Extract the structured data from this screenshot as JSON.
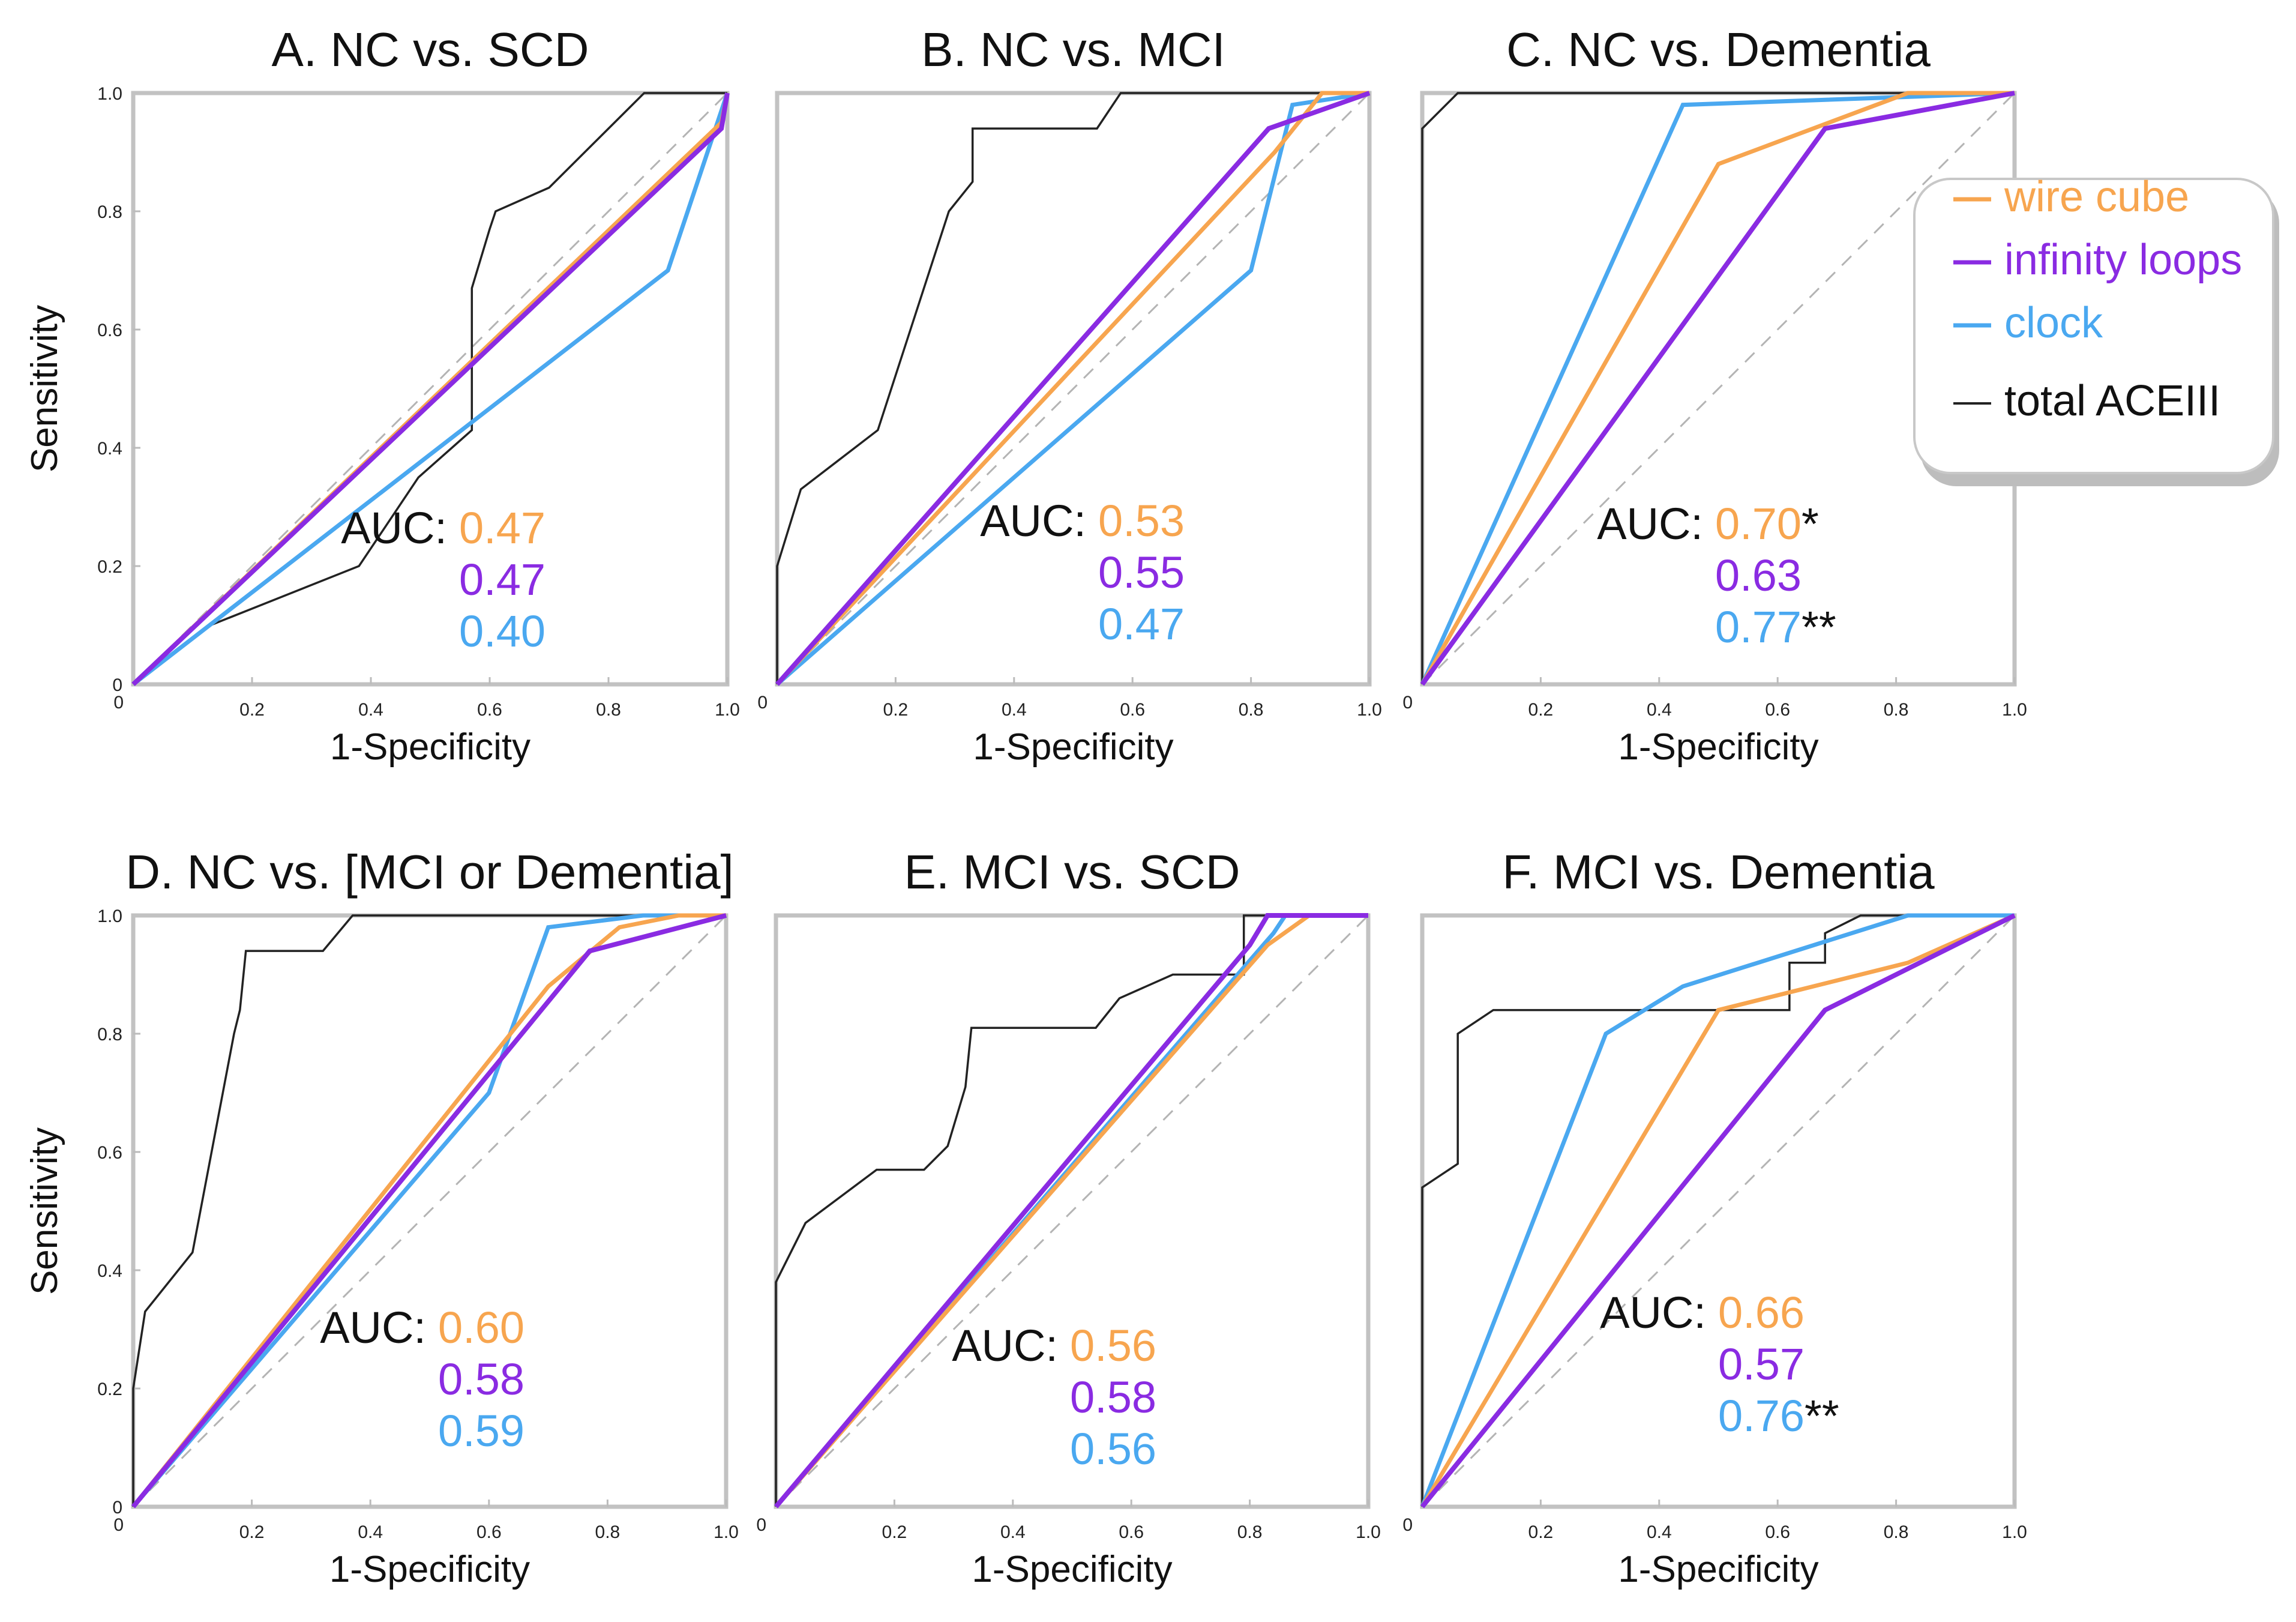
{
  "figure": {
    "xlabel": "1-Specificity",
    "ylabel": "Sensitivity",
    "auc_label": "AUC:",
    "ticks": [
      "0.2",
      "0.4",
      "0.6",
      "0.8",
      "1.0"
    ],
    "y_ticks": [
      "0",
      "0.2",
      "0.4",
      "0.6",
      "0.8",
      "1.0"
    ],
    "x_zero": "0"
  },
  "legend": {
    "placement": "right of panel C",
    "items": [
      {
        "key": "wire_cube",
        "label": "wire cube",
        "color": "#f7a54f",
        "icon": "line-swatch-icon"
      },
      {
        "key": "infinity_loops",
        "label": "infinity loops",
        "color": "#8a2be2",
        "icon": "line-swatch-icon"
      },
      {
        "key": "clock",
        "label": "clock",
        "color": "#4aa8f0",
        "icon": "line-swatch-icon"
      },
      {
        "key": "total_aceiii",
        "label": "total ACEIII",
        "color": "#222222",
        "icon": "line-swatch-icon"
      }
    ]
  },
  "chart_data": [
    {
      "type": "line",
      "title": "A. NC vs. SCD",
      "xlabel": "1-Specificity",
      "ylabel": "Sensitivity",
      "xlim": [
        0,
        1
      ],
      "ylim": [
        0,
        1
      ],
      "reference_diagonal": true,
      "auc": [
        {
          "series": "wire cube",
          "value": "0.47",
          "mark": ""
        },
        {
          "series": "infinity loops",
          "value": "0.47",
          "mark": ""
        },
        {
          "series": "clock",
          "value": "0.40",
          "mark": ""
        }
      ],
      "series": [
        {
          "name": "wire cube",
          "points": [
            [
              0,
              0
            ],
            [
              0.99,
              0.95
            ],
            [
              1,
              1
            ]
          ]
        },
        {
          "name": "infinity loops",
          "points": [
            [
              0,
              0
            ],
            [
              0.99,
              0.94
            ],
            [
              1,
              1
            ]
          ]
        },
        {
          "name": "clock",
          "points": [
            [
              0,
              0
            ],
            [
              0.9,
              0.7
            ],
            [
              1,
              1
            ]
          ]
        },
        {
          "name": "total ACEIII",
          "points": [
            [
              0,
              0
            ],
            [
              0.13,
              0.1
            ],
            [
              0.38,
              0.2
            ],
            [
              0.48,
              0.35
            ],
            [
              0.57,
              0.43
            ],
            [
              0.57,
              0.67
            ],
            [
              0.6,
              0.77
            ],
            [
              0.61,
              0.8
            ],
            [
              0.7,
              0.84
            ],
            [
              0.86,
              1.0
            ],
            [
              1,
              1
            ]
          ]
        }
      ]
    },
    {
      "type": "line",
      "title": "B. NC vs. MCI",
      "xlabel": "1-Specificity",
      "ylabel": "",
      "xlim": [
        0,
        1
      ],
      "ylim": [
        0,
        1
      ],
      "reference_diagonal": true,
      "auc": [
        {
          "series": "wire cube",
          "value": "0.53",
          "mark": ""
        },
        {
          "series": "infinity loops",
          "value": "0.55",
          "mark": ""
        },
        {
          "series": "clock",
          "value": "0.47",
          "mark": ""
        }
      ],
      "series": [
        {
          "name": "wire cube",
          "points": [
            [
              0,
              0
            ],
            [
              0.84,
              0.9
            ],
            [
              0.92,
              1.0
            ],
            [
              1,
              1
            ]
          ]
        },
        {
          "name": "infinity loops",
          "points": [
            [
              0,
              0
            ],
            [
              0.83,
              0.94
            ],
            [
              1,
              1
            ]
          ]
        },
        {
          "name": "clock",
          "points": [
            [
              0,
              0
            ],
            [
              0.8,
              0.7
            ],
            [
              0.87,
              0.98
            ],
            [
              1,
              1
            ]
          ]
        },
        {
          "name": "total ACEIII",
          "points": [
            [
              0,
              0
            ],
            [
              0,
              0.2
            ],
            [
              0.04,
              0.33
            ],
            [
              0.17,
              0.43
            ],
            [
              0.29,
              0.8
            ],
            [
              0.33,
              0.85
            ],
            [
              0.33,
              0.94
            ],
            [
              0.54,
              0.94
            ],
            [
              0.58,
              1.0
            ],
            [
              1,
              1
            ]
          ]
        }
      ]
    },
    {
      "type": "line",
      "title": "C. NC vs. Dementia",
      "xlabel": "1-Specificity",
      "ylabel": "",
      "xlim": [
        0,
        1
      ],
      "ylim": [
        0,
        1
      ],
      "reference_diagonal": true,
      "auc": [
        {
          "series": "wire cube",
          "value": "0.70",
          "mark": "*"
        },
        {
          "series": "infinity loops",
          "value": "0.63",
          "mark": ""
        },
        {
          "series": "clock",
          "value": "0.77",
          "mark": "**"
        }
      ],
      "series": [
        {
          "name": "wire cube",
          "points": [
            [
              0,
              0
            ],
            [
              0.5,
              0.88
            ],
            [
              0.82,
              1.0
            ],
            [
              1,
              1
            ]
          ]
        },
        {
          "name": "infinity loops",
          "points": [
            [
              0,
              0
            ],
            [
              0.68,
              0.94
            ],
            [
              1,
              1
            ]
          ]
        },
        {
          "name": "clock",
          "points": [
            [
              0,
              0
            ],
            [
              0.44,
              0.98
            ],
            [
              1,
              1
            ]
          ]
        },
        {
          "name": "total ACEIII",
          "points": [
            [
              0,
              0
            ],
            [
              0,
              0.94
            ],
            [
              0.06,
              1.0
            ],
            [
              1,
              1
            ]
          ]
        }
      ]
    },
    {
      "type": "line",
      "title": "D. NC vs. [MCI or Dementia]",
      "xlabel": "1-Specificity",
      "ylabel": "Sensitivity",
      "xlim": [
        0,
        1
      ],
      "ylim": [
        0,
        1
      ],
      "reference_diagonal": true,
      "auc": [
        {
          "series": "wire cube",
          "value": "0.60",
          "mark": ""
        },
        {
          "series": "infinity loops",
          "value": "0.58",
          "mark": ""
        },
        {
          "series": "clock",
          "value": "0.59",
          "mark": ""
        }
      ],
      "series": [
        {
          "name": "wire cube",
          "points": [
            [
              0,
              0
            ],
            [
              0.7,
              0.88
            ],
            [
              0.82,
              0.98
            ],
            [
              0.92,
              1.0
            ],
            [
              1,
              1
            ]
          ]
        },
        {
          "name": "infinity loops",
          "points": [
            [
              0,
              0
            ],
            [
              0.77,
              0.94
            ],
            [
              1,
              1
            ]
          ]
        },
        {
          "name": "clock",
          "points": [
            [
              0,
              0
            ],
            [
              0.6,
              0.7
            ],
            [
              0.7,
              0.98
            ],
            [
              0.86,
              1.0
            ],
            [
              1,
              1
            ]
          ]
        },
        {
          "name": "total ACEIII",
          "points": [
            [
              0,
              0
            ],
            [
              0,
              0.2
            ],
            [
              0.02,
              0.33
            ],
            [
              0.1,
              0.43
            ],
            [
              0.17,
              0.8
            ],
            [
              0.18,
              0.84
            ],
            [
              0.19,
              0.94
            ],
            [
              0.32,
              0.94
            ],
            [
              0.37,
              1.0
            ],
            [
              1,
              1
            ]
          ]
        }
      ]
    },
    {
      "type": "line",
      "title": "E. MCI vs. SCD",
      "xlabel": "1-Specificity",
      "ylabel": "",
      "xlim": [
        0,
        1
      ],
      "ylim": [
        0,
        1
      ],
      "reference_diagonal": true,
      "auc": [
        {
          "series": "wire cube",
          "value": "0.56",
          "mark": ""
        },
        {
          "series": "infinity loops",
          "value": "0.58",
          "mark": ""
        },
        {
          "series": "clock",
          "value": "0.56",
          "mark": ""
        }
      ],
      "series": [
        {
          "name": "wire cube",
          "points": [
            [
              0,
              0
            ],
            [
              0.83,
              0.95
            ],
            [
              0.9,
              1.0
            ],
            [
              1,
              1
            ]
          ]
        },
        {
          "name": "infinity loops",
          "points": [
            [
              0,
              0
            ],
            [
              0.8,
              0.95
            ],
            [
              0.83,
              1.0
            ],
            [
              1,
              1
            ]
          ]
        },
        {
          "name": "clock",
          "points": [
            [
              0,
              0
            ],
            [
              0.84,
              0.97
            ],
            [
              0.86,
              1.0
            ],
            [
              1,
              1
            ]
          ]
        },
        {
          "name": "total ACEIII",
          "points": [
            [
              0,
              0
            ],
            [
              0,
              0.38
            ],
            [
              0.05,
              0.48
            ],
            [
              0.17,
              0.57
            ],
            [
              0.25,
              0.57
            ],
            [
              0.29,
              0.61
            ],
            [
              0.32,
              0.71
            ],
            [
              0.33,
              0.81
            ],
            [
              0.54,
              0.81
            ],
            [
              0.58,
              0.86
            ],
            [
              0.67,
              0.9
            ],
            [
              0.79,
              0.9
            ],
            [
              0.79,
              1.0
            ],
            [
              1,
              1
            ]
          ]
        }
      ]
    },
    {
      "type": "line",
      "title": "F. MCI vs. Dementia",
      "xlabel": "1-Specificity",
      "ylabel": "",
      "xlim": [
        0,
        1
      ],
      "ylim": [
        0,
        1
      ],
      "reference_diagonal": true,
      "auc": [
        {
          "series": "wire cube",
          "value": "0.66",
          "mark": ""
        },
        {
          "series": "infinity loops",
          "value": "0.57",
          "mark": ""
        },
        {
          "series": "clock",
          "value": "0.76",
          "mark": "**"
        }
      ],
      "series": [
        {
          "name": "wire cube",
          "points": [
            [
              0,
              0
            ],
            [
              0.5,
              0.84
            ],
            [
              0.82,
              0.92
            ],
            [
              1,
              1
            ]
          ]
        },
        {
          "name": "infinity loops",
          "points": [
            [
              0,
              0
            ],
            [
              0.68,
              0.84
            ],
            [
              1,
              1
            ]
          ]
        },
        {
          "name": "clock",
          "points": [
            [
              0,
              0
            ],
            [
              0.31,
              0.8
            ],
            [
              0.44,
              0.88
            ],
            [
              0.82,
              1.0
            ],
            [
              1,
              1
            ]
          ]
        },
        {
          "name": "total ACEIII",
          "points": [
            [
              0,
              0
            ],
            [
              0,
              0.54
            ],
            [
              0.06,
              0.58
            ],
            [
              0.06,
              0.8
            ],
            [
              0.12,
              0.84
            ],
            [
              0.62,
              0.84
            ],
            [
              0.62,
              0.92
            ],
            [
              0.68,
              0.92
            ],
            [
              0.68,
              0.97
            ],
            [
              0.74,
              1.0
            ],
            [
              1,
              1
            ]
          ]
        }
      ]
    }
  ]
}
